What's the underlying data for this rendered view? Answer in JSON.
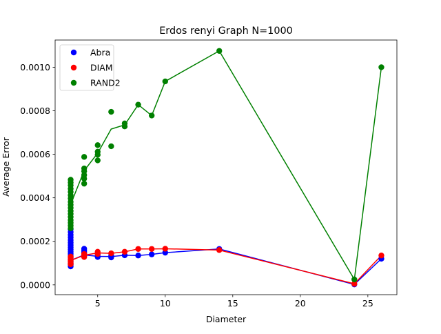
{
  "chart_data": {
    "type": "scatter",
    "title": "Erdos renyi Graph N=1000",
    "xlabel": "Diameter",
    "ylabel": "Average Error",
    "xlim": [
      1.85,
      27.15
    ],
    "ylim": [
      -4.5e-05,
      0.001125
    ],
    "xticks": [
      5,
      10,
      15,
      20,
      25
    ],
    "xtick_labels": [
      "5",
      "10",
      "15",
      "20",
      "25"
    ],
    "yticks": [
      0,
      0.0002,
      0.0004,
      0.0006,
      0.0008,
      0.001
    ],
    "ytick_labels": [
      "0.0000",
      "0.0002",
      "0.0004",
      "0.0006",
      "0.0008",
      "0.0010"
    ],
    "grid": false,
    "legend_position": "upper-left",
    "series": [
      {
        "name": "Abra",
        "color": "#0000ff",
        "points": [
          [
            3,
            8.5e-05
          ],
          [
            3,
            9.2e-05
          ],
          [
            3,
            0.0001
          ],
          [
            3,
            0.000108
          ],
          [
            3,
            0.000116
          ],
          [
            3,
            0.000124
          ],
          [
            3,
            0.000133
          ],
          [
            3,
            0.000142
          ],
          [
            3,
            0.000152
          ],
          [
            3,
            0.000162
          ],
          [
            3,
            0.000172
          ],
          [
            3,
            0.000183
          ],
          [
            3,
            0.000194
          ],
          [
            3,
            0.000206
          ],
          [
            3,
            0.000218
          ],
          [
            3,
            0.00023
          ],
          [
            3,
            0.000243
          ],
          [
            3,
            0.000256
          ],
          [
            4,
            0.000132
          ],
          [
            4,
            0.000142
          ],
          [
            4,
            0.00015
          ],
          [
            4,
            0.000158
          ],
          [
            4,
            0.000166
          ],
          [
            5,
            0.000128
          ],
          [
            5,
            0.000138
          ],
          [
            6,
            0.000126
          ],
          [
            6,
            0.000135
          ],
          [
            7,
            0.000136
          ],
          [
            8,
            0.000135
          ],
          [
            9,
            0.00014
          ],
          [
            10,
            0.000148
          ],
          [
            14,
            0.000165
          ],
          [
            24,
            2e-06
          ],
          [
            26,
            0.00012
          ]
        ],
        "line": [
          [
            3,
            0.000112
          ],
          [
            4,
            0.000138
          ],
          [
            5,
            0.000131
          ],
          [
            6,
            0.00013
          ],
          [
            7,
            0.000136
          ],
          [
            8,
            0.000135
          ],
          [
            9,
            0.00014
          ],
          [
            10,
            0.000148
          ],
          [
            14,
            0.000165
          ],
          [
            24,
            2e-06
          ],
          [
            26,
            0.00012
          ]
        ]
      },
      {
        "name": "DIAM",
        "color": "#ff0000",
        "points": [
          [
            3,
            9.5e-05
          ],
          [
            3,
            0.0001
          ],
          [
            3,
            0.000106
          ],
          [
            3,
            0.000112
          ],
          [
            3,
            0.000118
          ],
          [
            3,
            0.000124
          ],
          [
            3,
            0.00013
          ],
          [
            4,
            0.000128
          ],
          [
            4,
            0.000136
          ],
          [
            4,
            0.000142
          ],
          [
            5,
            0.000142
          ],
          [
            5,
            0.000152
          ],
          [
            6,
            0.000145
          ],
          [
            7,
            0.000152
          ],
          [
            8,
            0.000165
          ],
          [
            9,
            0.000165
          ],
          [
            10,
            0.000166
          ],
          [
            14,
            0.00016
          ],
          [
            24,
            5e-06
          ],
          [
            26,
            0.000135
          ]
        ],
        "line": [
          [
            3,
            0.000112
          ],
          [
            4,
            0.000136
          ],
          [
            5,
            0.000147
          ],
          [
            6,
            0.000145
          ],
          [
            7,
            0.000152
          ],
          [
            8,
            0.000165
          ],
          [
            9,
            0.000165
          ],
          [
            10,
            0.000166
          ],
          [
            14,
            0.00016
          ],
          [
            24,
            5e-06
          ],
          [
            26,
            0.000135
          ]
        ]
      },
      {
        "name": "RAND2",
        "color": "#008000",
        "points": [
          [
            3,
            0.00026
          ],
          [
            3,
            0.000272
          ],
          [
            3,
            0.000285
          ],
          [
            3,
            0.000298
          ],
          [
            3,
            0.000312
          ],
          [
            3,
            0.000326
          ],
          [
            3,
            0.00034
          ],
          [
            3,
            0.000354
          ],
          [
            3,
            0.000368
          ],
          [
            3,
            0.000382
          ],
          [
            3,
            0.000397
          ],
          [
            3,
            0.000412
          ],
          [
            3,
            0.000427
          ],
          [
            3,
            0.000442
          ],
          [
            3,
            0.000457
          ],
          [
            3,
            0.00047
          ],
          [
            3,
            0.000483
          ],
          [
            4,
            0.000465
          ],
          [
            4,
            0.000488
          ],
          [
            4,
            0.000505
          ],
          [
            4,
            0.000522
          ],
          [
            4,
            0.000535
          ],
          [
            4,
            0.000588
          ],
          [
            5,
            0.000572
          ],
          [
            5,
            0.000598
          ],
          [
            5,
            0.000612
          ],
          [
            5,
            0.000642
          ],
          [
            6,
            0.000637
          ],
          [
            6,
            0.000795
          ],
          [
            7,
            0.000728
          ],
          [
            7,
            0.000742
          ],
          [
            8,
            0.000828
          ],
          [
            9,
            0.000778
          ],
          [
            10,
            0.000935
          ],
          [
            14,
            0.001075
          ],
          [
            24,
            2.5e-05
          ],
          [
            26,
            0.001
          ]
        ],
        "line": [
          [
            3,
            0.00037
          ],
          [
            4,
            0.000525
          ],
          [
            5,
            0.000605
          ],
          [
            6,
            0.000716
          ],
          [
            7,
            0.000735
          ],
          [
            8,
            0.000828
          ],
          [
            9,
            0.000778
          ],
          [
            10,
            0.000935
          ],
          [
            14,
            0.001075
          ],
          [
            24,
            2.5e-05
          ],
          [
            26,
            0.001
          ]
        ]
      }
    ]
  }
}
